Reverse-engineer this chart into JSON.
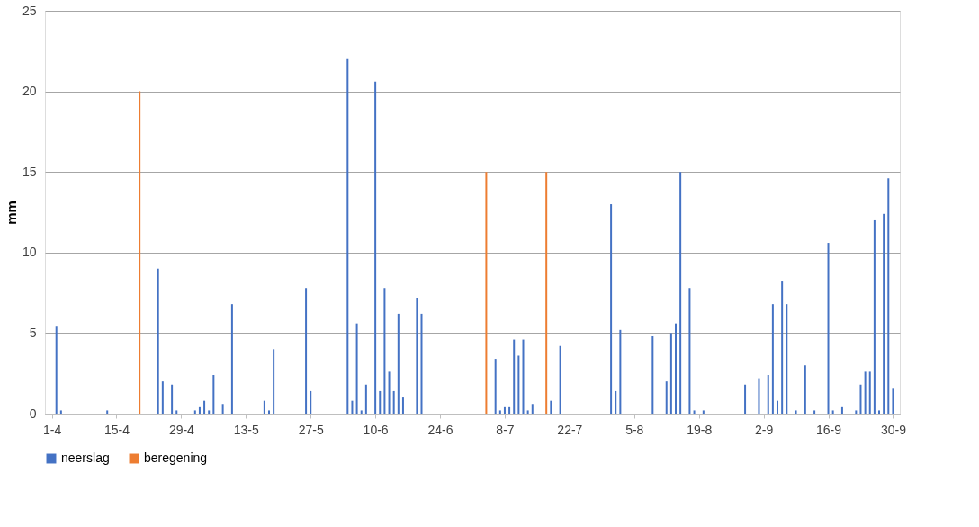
{
  "chart_data": {
    "type": "bar",
    "ylabel": "mm",
    "ylim": [
      0,
      25
    ],
    "yticks": [
      0,
      5,
      10,
      15,
      20,
      25
    ],
    "grid": "y",
    "legend": "bottom",
    "categories": [
      "1-4",
      null,
      null,
      null,
      null,
      null,
      null,
      null,
      null,
      null,
      null,
      null,
      null,
      null,
      "15-4",
      null,
      null,
      null,
      null,
      null,
      null,
      null,
      null,
      null,
      null,
      null,
      null,
      null,
      "29-4",
      null,
      null,
      null,
      null,
      null,
      null,
      null,
      null,
      null,
      null,
      null,
      null,
      null,
      "13-5",
      null,
      null,
      null,
      null,
      null,
      null,
      null,
      null,
      null,
      null,
      null,
      null,
      null,
      "27-5",
      null,
      null,
      null,
      null,
      null,
      null,
      null,
      null,
      null,
      null,
      null,
      null,
      null,
      "10-6",
      null,
      null,
      null,
      null,
      null,
      null,
      null,
      null,
      null,
      null,
      null,
      null,
      null,
      "24-6",
      null,
      null,
      null,
      null,
      null,
      null,
      null,
      null,
      null,
      null,
      null,
      null,
      null,
      "8-7",
      null,
      null,
      null,
      null,
      null,
      null,
      null,
      null,
      null,
      null,
      null,
      null,
      null,
      "22-7",
      null,
      null,
      null,
      null,
      null,
      null,
      null,
      null,
      null,
      null,
      null,
      null,
      null,
      "5-8",
      null,
      null,
      null,
      null,
      null,
      null,
      null,
      null,
      null,
      null,
      null,
      null,
      null,
      "19-8",
      null,
      null,
      null,
      null,
      null,
      null,
      null,
      null,
      null,
      null,
      null,
      null,
      null,
      "2-9",
      null,
      null,
      null,
      null,
      null,
      null,
      null,
      null,
      null,
      null,
      null,
      null,
      null,
      "16-9",
      null,
      null,
      null,
      null,
      null,
      null,
      null,
      null,
      null,
      null,
      null,
      null,
      null,
      "30-9"
    ],
    "series": [
      {
        "name": "neerslag",
        "color": "#4472c4",
        "values": [
          null,
          5.4,
          0.2,
          null,
          null,
          null,
          null,
          null,
          null,
          null,
          null,
          null,
          0.2,
          null,
          null,
          null,
          null,
          null,
          null,
          null,
          null,
          null,
          null,
          9.0,
          2.0,
          null,
          1.8,
          0.2,
          null,
          null,
          null,
          0.2,
          0.4,
          0.8,
          0.2,
          2.4,
          null,
          0.6,
          null,
          6.8,
          null,
          null,
          null,
          null,
          null,
          null,
          0.8,
          0.2,
          4.0,
          null,
          null,
          null,
          null,
          null,
          null,
          7.8,
          1.4,
          null,
          null,
          null,
          null,
          null,
          null,
          null,
          22.0,
          0.8,
          5.6,
          0.2,
          1.8,
          null,
          20.6,
          1.4,
          7.8,
          2.6,
          1.4,
          6.2,
          1.0,
          null,
          null,
          7.2,
          6.2,
          null,
          null,
          null,
          null,
          null,
          null,
          null,
          null,
          null,
          null,
          null,
          null,
          null,
          null,
          null,
          3.4,
          0.2,
          0.4,
          0.4,
          4.6,
          3.6,
          4.6,
          0.2,
          0.6,
          null,
          null,
          null,
          0.8,
          null,
          4.2,
          null,
          null,
          null,
          null,
          null,
          null,
          null,
          null,
          null,
          null,
          13.0,
          1.4,
          5.2,
          null,
          null,
          null,
          null,
          null,
          null,
          4.8,
          null,
          null,
          2.0,
          5.0,
          5.6,
          15.0,
          null,
          7.8,
          0.2,
          null,
          0.2,
          null,
          null,
          null,
          null,
          null,
          null,
          null,
          null,
          1.8,
          null,
          null,
          2.2,
          null,
          2.4,
          6.8,
          0.8,
          8.2,
          6.8,
          null,
          0.2,
          null,
          3.0,
          null,
          0.2,
          null,
          null,
          10.6,
          0.2,
          null,
          0.4,
          null,
          null,
          0.2,
          1.8,
          2.6,
          2.6,
          12.0,
          0.2,
          12.4,
          14.6,
          1.6
        ]
      },
      {
        "name": "beregening",
        "color": "#ed7d31",
        "values": [
          null,
          null,
          null,
          null,
          null,
          null,
          null,
          null,
          null,
          null,
          null,
          null,
          null,
          null,
          null,
          null,
          null,
          null,
          null,
          20,
          null,
          null,
          null,
          null,
          null,
          null,
          null,
          null,
          null,
          null,
          null,
          null,
          null,
          null,
          null,
          null,
          null,
          null,
          null,
          null,
          null,
          null,
          null,
          null,
          null,
          null,
          null,
          null,
          null,
          null,
          null,
          null,
          null,
          null,
          null,
          null,
          null,
          null,
          null,
          null,
          null,
          null,
          null,
          null,
          null,
          null,
          null,
          null,
          null,
          null,
          null,
          null,
          null,
          null,
          null,
          null,
          null,
          null,
          null,
          null,
          null,
          null,
          null,
          null,
          null,
          null,
          null,
          null,
          null,
          null,
          null,
          null,
          null,
          null,
          15,
          null,
          null,
          null,
          null,
          null,
          null,
          null,
          null,
          null,
          null,
          null,
          null,
          15,
          null,
          null,
          null,
          null,
          null,
          null,
          null,
          null,
          null,
          null,
          null,
          null,
          null,
          null,
          null,
          null,
          null,
          null,
          null,
          null,
          null,
          null,
          null,
          null,
          null,
          null,
          null,
          null,
          null,
          null,
          null,
          null,
          null,
          null,
          null,
          null,
          null,
          null,
          null,
          null,
          null,
          null,
          null,
          null,
          null,
          null,
          null,
          null,
          null,
          null,
          null,
          null,
          null,
          null,
          null,
          null,
          null,
          null,
          null,
          null,
          null,
          null,
          null,
          null,
          null,
          null,
          null,
          null,
          null,
          null,
          null,
          null,
          null,
          null,
          null
        ]
      }
    ]
  }
}
